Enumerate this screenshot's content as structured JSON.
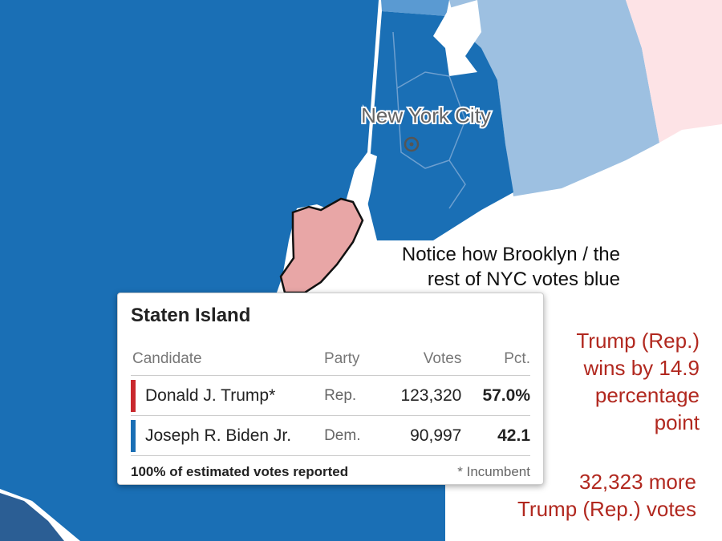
{
  "map_label": "New York City",
  "annotations": {
    "notice": [
      "Notice how Brooklyn / the",
      "rest of NYC votes blue"
    ],
    "margin": [
      "Trump (Rep.)",
      "wins by 14.9",
      "percentage",
      "point"
    ],
    "votes": [
      "32,323 more",
      "Trump (Rep.) votes"
    ]
  },
  "tooltip": {
    "title": "Staten Island",
    "headers": [
      "Candidate",
      "Party",
      "Votes",
      "Pct."
    ],
    "rows": [
      [
        "Donald J. Trump*",
        "Rep.",
        "123,320",
        "57.0%"
      ],
      [
        "Joseph R. Biden Jr.",
        "Dem.",
        "90,997",
        "42.1"
      ]
    ],
    "footer": "100% of estimated votes reported",
    "note": "* Incumbent"
  }
}
